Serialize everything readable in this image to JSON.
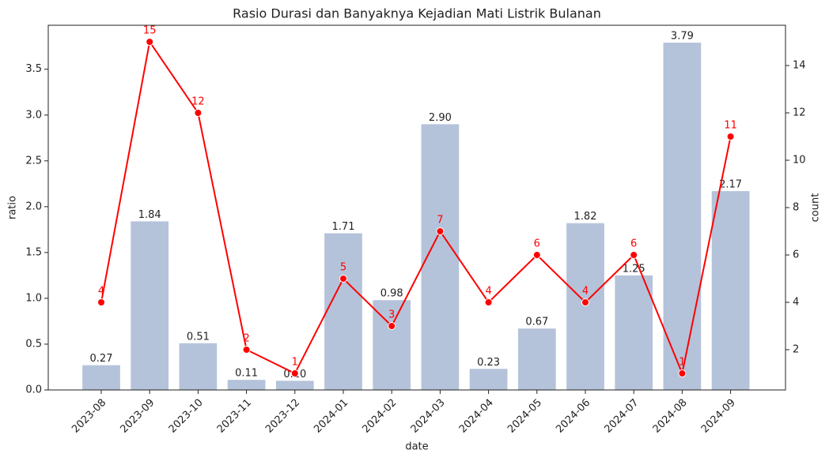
{
  "chart_data": {
    "type": "bar_line",
    "title": "Rasio Durasi dan Banyaknya Kejadian Mati Listrik Bulanan",
    "x_label": "date",
    "y_label": "ratio",
    "y2_label": "count",
    "categories": [
      "2023-08",
      "2023-09",
      "2023-10",
      "2023-11",
      "2023-12",
      "2024-01",
      "2024-02",
      "2024-03",
      "2024-04",
      "2024-05",
      "2024-06",
      "2024-07",
      "2024-08",
      "2024-09"
    ],
    "series": [
      {
        "type": "bar",
        "color": "#b4c3da",
        "values": [
          0.27,
          1.84,
          0.51,
          0.11,
          0.1,
          1.71,
          0.98,
          2.9,
          0.23,
          0.67,
          1.82,
          1.25,
          3.79,
          2.17
        ],
        "value_labels": [
          "0.27",
          "1.84",
          "0.51",
          "0.11",
          "0.10",
          "1.71",
          "0.98",
          "2.90",
          "0.23",
          "0.67",
          "1.82",
          "1.25",
          "3.79",
          "2.17"
        ]
      },
      {
        "type": "line",
        "color": "#ff0000",
        "axis": "y2",
        "values": [
          4,
          15,
          12,
          2,
          1,
          5,
          3,
          7,
          4,
          6,
          4,
          6,
          1,
          11
        ]
      }
    ],
    "ylim": [
      0,
      3.98
    ],
    "yticks": [
      {
        "value": 0,
        "label": "0.0"
      },
      {
        "value": 0.5,
        "label": "0.5"
      },
      {
        "value": 1,
        "label": "1.0"
      },
      {
        "value": 1.5,
        "label": "1.5"
      },
      {
        "value": 2,
        "label": "2.0"
      },
      {
        "value": 2.5,
        "label": "2.5"
      },
      {
        "value": 3,
        "label": "3.0"
      },
      {
        "value": 3.5,
        "label": "3.5"
      }
    ],
    "y2lim": [
      0.3,
      15.7
    ],
    "y2ticks": [
      2,
      4,
      6,
      8,
      10,
      12,
      14
    ]
  }
}
